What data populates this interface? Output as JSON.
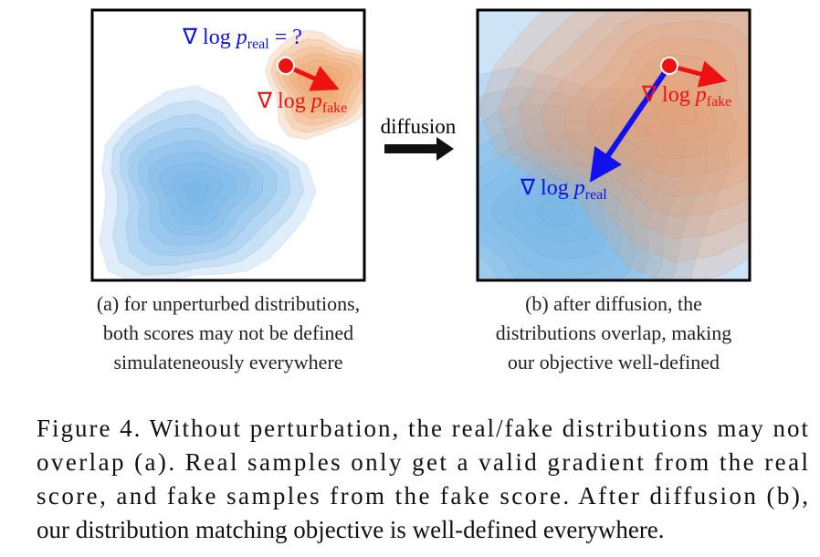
{
  "panel_a": {
    "score_real": {
      "op": "∇ log",
      "var": "p",
      "sub": "real",
      "rest": " = ?"
    },
    "score_fake": {
      "op": "∇ log",
      "var": "p",
      "sub": "fake"
    },
    "caption_lines": [
      "(a) for unperturbed distributions,",
      "both scores may not be defined",
      "simulateneously everywhere"
    ]
  },
  "arrow_label": "diffusion",
  "panel_b": {
    "score_fake": {
      "op": "∇ log",
      "var": "p",
      "sub": "fake"
    },
    "score_real": {
      "op": "∇ log",
      "var": "p",
      "sub": "real"
    },
    "caption_lines": [
      "(b) after diffusion, the",
      "distributions overlap, making",
      "our objective well-defined"
    ]
  },
  "figure_caption": {
    "lines": [
      "Figure 4.  Without perturbation, the real/fake distributions may not",
      "overlap (a).  Real samples only get a valid gradient from the real",
      "score, and fake samples from the fake score.  After diffusion (b),",
      "our distribution matching objective is well-defined everywhere."
    ]
  }
}
